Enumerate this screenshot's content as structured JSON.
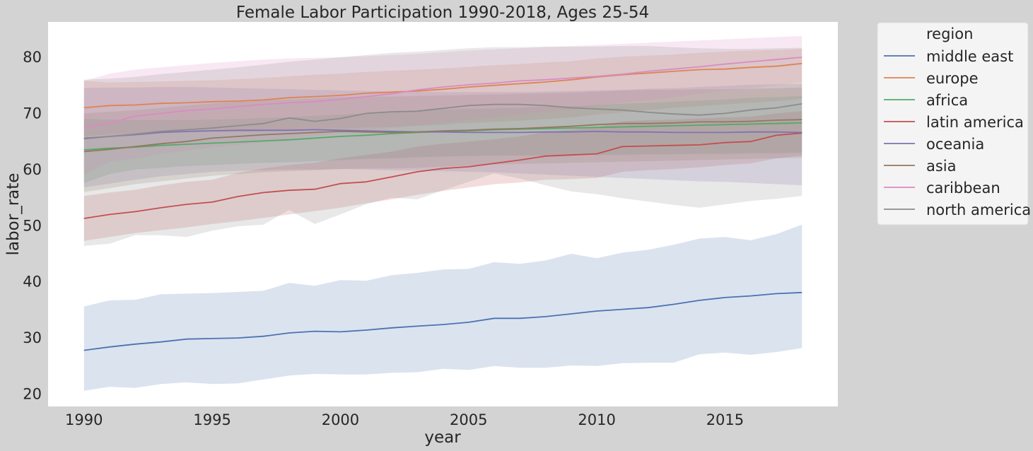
{
  "chart_data": {
    "type": "line",
    "title": "Female Labor Participation 1990-2018, Ages 25-54",
    "xlabel": "year",
    "ylabel": "labor_rate",
    "x": [
      1990,
      1991,
      1992,
      1993,
      1994,
      1995,
      1996,
      1997,
      1998,
      1999,
      2000,
      2001,
      2002,
      2003,
      2004,
      2005,
      2006,
      2007,
      2008,
      2009,
      2010,
      2011,
      2012,
      2013,
      2014,
      2015,
      2016,
      2017,
      2018
    ],
    "xlim": [
      1988.6,
      2019.4
    ],
    "ylim": [
      17.8,
      86.3
    ],
    "xticks": [
      1990,
      1995,
      2000,
      2005,
      2010,
      2015
    ],
    "yticks": [
      20,
      30,
      40,
      50,
      60,
      70,
      80
    ],
    "grid": false,
    "legend": {
      "title": "region",
      "placement": "outside-right"
    },
    "series": [
      {
        "name": "middle east",
        "color": "#4c72b0",
        "values": [
          27.8,
          28.4,
          28.9,
          29.3,
          29.8,
          29.9,
          30.0,
          30.3,
          30.9,
          31.2,
          31.1,
          31.4,
          31.8,
          32.1,
          32.4,
          32.8,
          33.5,
          33.5,
          33.8,
          34.3,
          34.8,
          35.1,
          35.4,
          36.0,
          36.7,
          37.2,
          37.5,
          37.9,
          38.1
        ],
        "lower": [
          20.6,
          21.3,
          21.1,
          21.8,
          22.1,
          21.8,
          21.9,
          22.6,
          23.3,
          23.6,
          23.5,
          23.5,
          23.8,
          23.9,
          24.5,
          24.3,
          25.0,
          24.7,
          24.7,
          25.1,
          25.0,
          25.5,
          25.6,
          25.6,
          27.1,
          27.4,
          27.0,
          27.5,
          28.2
        ],
        "upper": [
          35.6,
          36.7,
          36.8,
          37.8,
          37.9,
          38.0,
          38.2,
          38.4,
          39.8,
          39.3,
          40.3,
          40.2,
          41.2,
          41.6,
          42.2,
          42.3,
          43.5,
          43.2,
          43.8,
          45.0,
          44.2,
          45.2,
          45.7,
          46.6,
          47.7,
          48.0,
          47.4,
          48.5,
          50.2
        ]
      },
      {
        "name": "europe",
        "color": "#dd8452",
        "values": [
          71.0,
          71.4,
          71.5,
          71.8,
          71.9,
          72.1,
          72.2,
          72.4,
          72.8,
          73.0,
          73.2,
          73.6,
          73.8,
          74.0,
          74.3,
          74.7,
          75.0,
          75.3,
          75.6,
          76.0,
          76.5,
          76.9,
          77.2,
          77.5,
          77.8,
          77.9,
          78.2,
          78.4,
          78.9
        ],
        "lower": [
          65.9,
          66.3,
          66.3,
          66.5,
          66.6,
          66.8,
          66.7,
          66.8,
          67.0,
          67.2,
          67.3,
          67.5,
          67.6,
          67.8,
          68.0,
          68.3,
          68.5,
          68.7,
          69.0,
          69.3,
          69.8,
          70.2,
          70.6,
          71.0,
          71.3,
          71.6,
          71.9,
          72.2,
          72.6
        ],
        "upper": [
          75.8,
          75.5,
          75.6,
          75.7,
          75.8,
          75.9,
          76.1,
          76.3,
          76.6,
          76.9,
          77.1,
          77.4,
          77.6,
          77.8,
          78.0,
          78.3,
          78.6,
          78.8,
          79.1,
          79.3,
          79.8,
          80.1,
          80.3,
          80.5,
          80.8,
          81.0,
          81.2,
          81.3,
          81.5
        ]
      },
      {
        "name": "africa",
        "color": "#55a868",
        "values": [
          63.5,
          63.8,
          64.0,
          64.3,
          64.5,
          64.7,
          64.9,
          65.1,
          65.3,
          65.6,
          65.9,
          66.1,
          66.4,
          66.6,
          66.8,
          66.9,
          67.1,
          67.2,
          67.3,
          67.4,
          67.5,
          67.6,
          67.7,
          67.8,
          67.9,
          68.0,
          68.1,
          68.2,
          68.3
        ],
        "lower": [
          57.6,
          59.2,
          60.0,
          60.3,
          60.6,
          60.8,
          61.0,
          61.2,
          61.3,
          61.5,
          61.7,
          61.9,
          62.0,
          62.2,
          62.3,
          62.4,
          62.5,
          62.5,
          62.5,
          62.6,
          62.6,
          62.6,
          62.7,
          62.7,
          62.8,
          62.8,
          62.9,
          62.9,
          63.0
        ],
        "upper": [
          69.0,
          68.9,
          68.8,
          68.8,
          68.8,
          68.9,
          69.0,
          69.2,
          69.3,
          69.6,
          69.8,
          70.0,
          70.2,
          70.5,
          70.7,
          70.8,
          70.9,
          71.0,
          71.2,
          71.3,
          71.5,
          71.7,
          71.9,
          72.1,
          72.3,
          72.5,
          72.8,
          72.9,
          73.1
        ]
      },
      {
        "name": "latin america",
        "color": "#c44e52",
        "values": [
          51.3,
          52.0,
          52.5,
          53.2,
          53.8,
          54.2,
          55.2,
          55.9,
          56.3,
          56.5,
          57.5,
          57.8,
          58.7,
          59.6,
          60.2,
          60.5,
          61.1,
          61.7,
          62.4,
          62.6,
          62.8,
          64.1,
          64.2,
          64.3,
          64.4,
          64.8,
          65.0,
          66.1,
          66.5
        ],
        "lower": [
          47.3,
          48.0,
          48.7,
          49.2,
          49.7,
          50.3,
          50.8,
          51.4,
          52.0,
          52.6,
          53.2,
          54.0,
          54.7,
          55.5,
          56.2,
          56.8,
          57.4,
          57.7,
          58.2,
          58.3,
          58.5,
          59.6,
          59.9,
          60.1,
          60.4,
          60.8,
          61.1,
          62.0,
          62.5
        ],
        "upper": [
          55.3,
          55.9,
          56.4,
          57.2,
          57.8,
          58.2,
          59.4,
          60.2,
          60.8,
          61.2,
          62.0,
          62.6,
          63.2,
          64.1,
          64.6,
          65.0,
          65.4,
          65.9,
          66.7,
          67.1,
          67.5,
          68.6,
          68.8,
          68.9,
          69.1,
          69.3,
          69.4,
          70.0,
          70.4
        ]
      },
      {
        "name": "oceania",
        "color": "#8172b3",
        "values": [
          65.5,
          65.9,
          66.2,
          66.6,
          66.8,
          66.9,
          67.0,
          67.0,
          67.0,
          67.1,
          67.0,
          66.9,
          66.8,
          66.7,
          66.7,
          66.6,
          66.6,
          66.6,
          66.7,
          66.7,
          66.8,
          66.7,
          66.7,
          66.6,
          66.6,
          66.6,
          66.7,
          66.7,
          66.6
        ],
        "lower": [
          56.8,
          57.5,
          58.2,
          58.8,
          59.2,
          59.6,
          59.8,
          59.9,
          60.0,
          60.0,
          60.1,
          60.0,
          59.9,
          59.8,
          59.7,
          59.6,
          59.5,
          59.3,
          59.1,
          58.9,
          58.7,
          58.5,
          58.3,
          58.1,
          57.9,
          57.8,
          57.6,
          57.4,
          57.2
        ],
        "upper": [
          74.5,
          74.6,
          74.6,
          74.7,
          74.7,
          74.6,
          74.5,
          74.4,
          74.3,
          74.2,
          74.1,
          74.0,
          73.9,
          73.9,
          73.8,
          73.8,
          73.8,
          73.8,
          73.9,
          74.0,
          74.1,
          74.2,
          74.4,
          74.5,
          74.7,
          74.9,
          75.1,
          75.2,
          75.3
        ]
      },
      {
        "name": "asia",
        "color": "#937860",
        "values": [
          63.2,
          63.6,
          64.1,
          64.6,
          65.0,
          65.6,
          65.9,
          66.2,
          66.4,
          66.6,
          66.8,
          66.7,
          66.6,
          66.7,
          66.9,
          67.0,
          67.2,
          67.3,
          67.5,
          67.7,
          68.0,
          68.2,
          68.2,
          68.3,
          68.5,
          68.5,
          68.6,
          68.8,
          68.9
        ],
        "lower": [
          56.0,
          56.7,
          57.4,
          57.9,
          58.4,
          58.9,
          59.2,
          59.5,
          59.7,
          59.9,
          60.1,
          60.2,
          60.2,
          60.3,
          60.5,
          60.7,
          60.9,
          61.0,
          61.1,
          61.2,
          61.3,
          61.4,
          61.5,
          61.6,
          61.7,
          61.8,
          61.9,
          62.0,
          62.1
        ],
        "upper": [
          70.0,
          70.3,
          70.6,
          71.0,
          71.4,
          71.8,
          72.1,
          72.3,
          72.5,
          72.7,
          72.9,
          73.0,
          73.0,
          73.1,
          73.2,
          73.3,
          73.4,
          73.5,
          73.6,
          73.7,
          73.9,
          74.1,
          74.2,
          74.2,
          74.3,
          74.3,
          74.4,
          74.5,
          74.6
        ]
      },
      {
        "name": "caribbean",
        "color": "#da8bc3",
        "values": [
          67.4,
          68.3,
          69.5,
          70.0,
          70.5,
          70.8,
          71.2,
          71.6,
          71.9,
          72.1,
          72.5,
          73.0,
          73.5,
          74.2,
          74.7,
          75.1,
          75.4,
          75.8,
          76.0,
          76.3,
          76.6,
          77.0,
          77.5,
          77.9,
          78.3,
          78.8,
          79.2,
          79.6,
          80.0
        ],
        "lower": [
          59.1,
          61.4,
          61.9,
          62.8,
          63.4,
          63.9,
          64.4,
          64.9,
          65.5,
          66.0,
          66.5,
          67.0,
          67.4,
          67.8,
          68.4,
          68.9,
          69.4,
          69.8,
          70.3,
          70.7,
          71.3,
          71.9,
          72.3,
          72.8,
          73.5,
          74.0,
          74.5,
          75.0,
          75.6
        ],
        "upper": [
          75.8,
          77.1,
          77.8,
          78.2,
          78.6,
          79.0,
          79.3,
          79.6,
          79.8,
          79.9,
          80.0,
          80.2,
          80.4,
          80.6,
          80.9,
          81.2,
          81.4,
          81.6,
          81.8,
          82.0,
          82.2,
          82.4,
          82.6,
          82.8,
          83.0,
          83.2,
          83.4,
          83.6,
          83.8
        ]
      },
      {
        "name": "north america",
        "color": "#8c8c8c",
        "values": [
          65.6,
          65.9,
          66.3,
          66.8,
          67.1,
          67.4,
          67.8,
          68.2,
          69.2,
          68.6,
          69.1,
          70.0,
          70.3,
          70.4,
          70.9,
          71.4,
          71.6,
          71.6,
          71.4,
          71.0,
          70.8,
          70.6,
          70.2,
          69.9,
          69.7,
          70.0,
          70.6,
          71.0,
          71.7
        ],
        "lower": [
          46.4,
          46.8,
          48.3,
          48.3,
          48.0,
          49.1,
          49.9,
          50.2,
          52.8,
          50.3,
          52.0,
          53.8,
          55.0,
          54.7,
          56.3,
          57.8,
          59.3,
          58.4,
          57.2,
          56.1,
          55.6,
          54.9,
          54.3,
          53.7,
          53.2,
          53.8,
          54.4,
          54.8,
          55.3
        ],
        "upper": [
          76.0,
          76.2,
          76.5,
          77.0,
          77.4,
          77.8,
          78.2,
          78.7,
          79.2,
          79.6,
          80.0,
          80.4,
          80.8,
          81.0,
          81.3,
          81.6,
          81.8,
          81.8,
          81.9,
          81.9,
          81.9,
          82.0,
          82.0,
          81.8,
          81.6,
          81.5,
          81.5,
          81.6,
          81.7
        ]
      }
    ]
  }
}
